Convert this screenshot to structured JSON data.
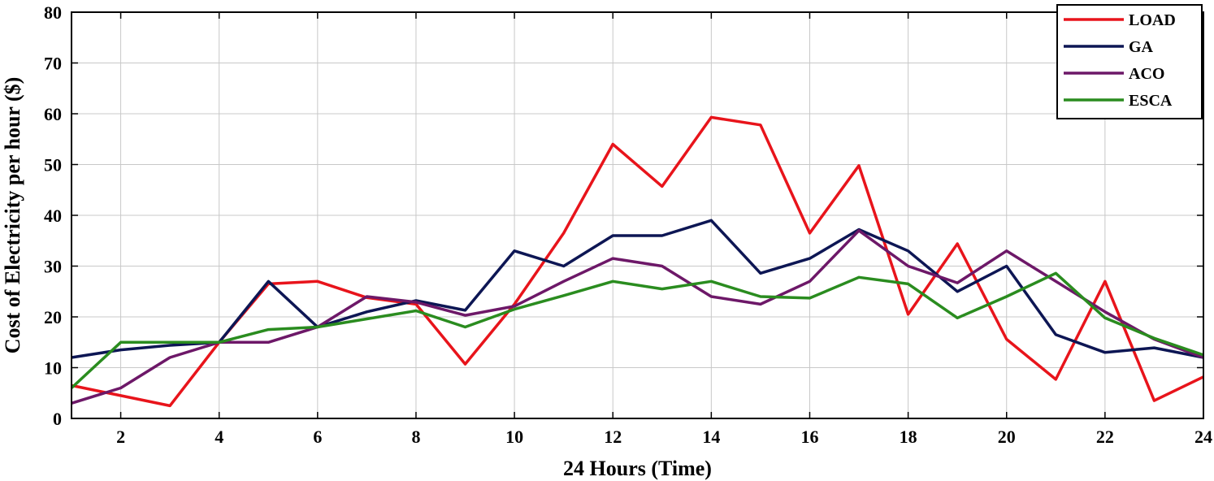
{
  "chart_data": {
    "type": "line",
    "title": "",
    "xlabel": "24 Hours (Time)",
    "ylabel": "Cost of Electricity per hour ($)",
    "xlim": [
      1,
      24
    ],
    "ylim": [
      0,
      80
    ],
    "xticks": [
      2,
      4,
      6,
      8,
      10,
      12,
      14,
      16,
      18,
      20,
      22,
      24
    ],
    "yticks": [
      0,
      10,
      20,
      30,
      40,
      50,
      60,
      70,
      80
    ],
    "grid": true,
    "legend_position": "top-right",
    "x": [
      1,
      2,
      3,
      4,
      5,
      6,
      7,
      8,
      9,
      10,
      11,
      12,
      13,
      14,
      15,
      16,
      17,
      18,
      19,
      20,
      21,
      22,
      23,
      24
    ],
    "series": [
      {
        "name": "LOAD",
        "color": "#e8141b",
        "values": [
          6.5,
          4.5,
          2.5,
          15,
          26.5,
          27,
          23.8,
          22.5,
          10.7,
          22.5,
          36.5,
          54,
          45.7,
          59.3,
          57.8,
          36.5,
          49.8,
          20.5,
          34.4,
          15.6,
          7.7,
          27,
          3.5,
          8.2
        ]
      },
      {
        "name": "GA",
        "color": "#0d1654",
        "values": [
          12,
          13.5,
          14.4,
          15,
          27,
          18,
          21,
          23.2,
          21.3,
          33,
          30,
          36,
          36,
          39,
          28.6,
          31.5,
          37.2,
          33,
          25,
          30,
          16.5,
          13,
          13.9,
          12
        ]
      },
      {
        "name": "ACO",
        "color": "#6d1868",
        "values": [
          3,
          6,
          12,
          15,
          15,
          18,
          24,
          22.9,
          20.3,
          22.1,
          27,
          31.5,
          30,
          24,
          22.5,
          27,
          37,
          30,
          26.7,
          33,
          27,
          21,
          15.6,
          12
        ]
      },
      {
        "name": "ESCA",
        "color": "#2a8c1f",
        "values": [
          6,
          15,
          15,
          15,
          17.5,
          18,
          19.6,
          21.2,
          18,
          21.5,
          24.2,
          27,
          25.5,
          27,
          24,
          23.7,
          27.8,
          26.5,
          19.8,
          24,
          28.6,
          19.8,
          15.8,
          12.5
        ]
      }
    ]
  }
}
